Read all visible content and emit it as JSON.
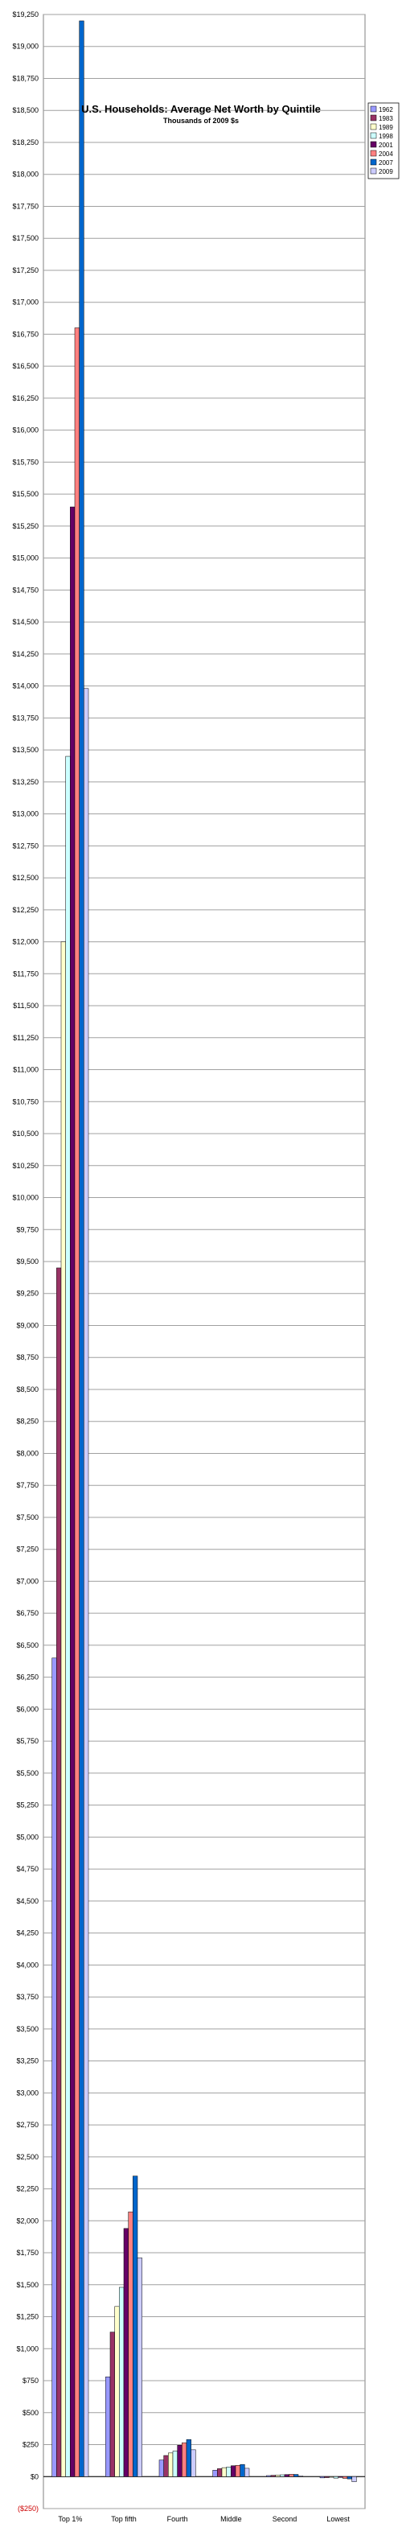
{
  "chart_data": {
    "type": "bar",
    "title": "U.S. Households: Average Net Worth by Quintile",
    "subtitle": "Thousands of 2009 $s",
    "categories": [
      "Top 1%",
      "Top fifth",
      "Fourth",
      "Middle",
      "Second",
      "Lowest"
    ],
    "yticks": [
      "($250)",
      "$0",
      "$250",
      "$500",
      "$750",
      "$1,000",
      "$1,250",
      "$1,500",
      "$1,750",
      "$2,000",
      "$2,250",
      "$2,500",
      "$2,750",
      "$3,000",
      "$3,250",
      "$3,500",
      "$3,750",
      "$4,000",
      "$4,250",
      "$4,500",
      "$4,750",
      "$5,000",
      "$5,250",
      "$5,500",
      "$5,750",
      "$6,000",
      "$6,250",
      "$6,500",
      "$6,750",
      "$7,000",
      "$7,250",
      "$7,500",
      "$7,750",
      "$8,000",
      "$8,250",
      "$8,500",
      "$8,750",
      "$9,000",
      "$9,250",
      "$9,500",
      "$9,750",
      "$10,000",
      "$10,250",
      "$10,500",
      "$10,750",
      "$11,000",
      "$11,250",
      "$11,500",
      "$11,750",
      "$12,000",
      "$12,250",
      "$12,500",
      "$12,750",
      "$13,000",
      "$13,250",
      "$13,500",
      "$13,750",
      "$14,000",
      "$14,250",
      "$14,500",
      "$14,750",
      "$15,000",
      "$15,250",
      "$15,500",
      "$15,750",
      "$16,000",
      "$16,250",
      "$16,500",
      "$16,750",
      "$17,000",
      "$17,250",
      "$17,500",
      "$17,750",
      "$18,000",
      "$18,250",
      "$18,500",
      "$18,750",
      "$19,000",
      "$19,250"
    ],
    "ylim": [
      -250,
      19250
    ],
    "grid": true,
    "legend_position": "right",
    "series": [
      {
        "name": "1962",
        "color": "#9999ff",
        "values": [
          6400,
          780,
          130,
          50,
          8,
          -10
        ]
      },
      {
        "name": "1983",
        "color": "#993366",
        "values": [
          9450,
          1130,
          165,
          62,
          10,
          -8
        ]
      },
      {
        "name": "1989",
        "color": "#ffffcc",
        "values": [
          12000,
          1330,
          185,
          70,
          12,
          -5
        ]
      },
      {
        "name": "1998",
        "color": "#ccffff",
        "values": [
          13450,
          1480,
          200,
          75,
          14,
          -12
        ]
      },
      {
        "name": "2001",
        "color": "#660066",
        "values": [
          15400,
          1940,
          245,
          85,
          16,
          -6
        ]
      },
      {
        "name": "2004",
        "color": "#ff8080",
        "values": [
          16800,
          2070,
          265,
          88,
          18,
          -14
        ]
      },
      {
        "name": "2007",
        "color": "#0066cc",
        "values": [
          19200,
          2350,
          290,
          95,
          17,
          -18
        ]
      },
      {
        "name": "2009",
        "color": "#ccccff",
        "values": [
          13980,
          1710,
          210,
          65,
          5,
          -40
        ]
      }
    ]
  }
}
